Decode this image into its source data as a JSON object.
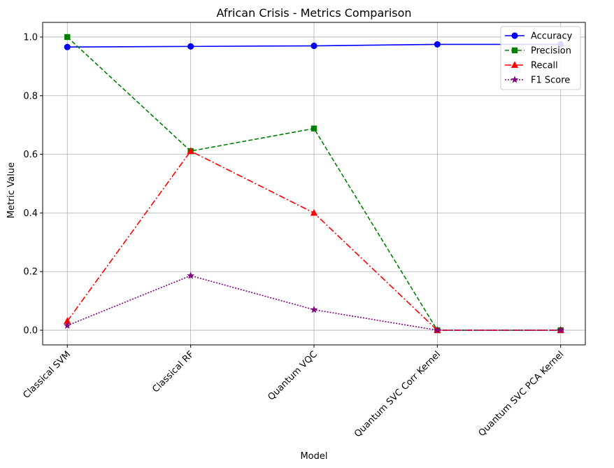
{
  "chart_data": {
    "type": "line",
    "title": "African Crisis - Metrics Comparison",
    "xlabel": "Model",
    "ylabel": "Metric Value",
    "categories": [
      "Classical SVM",
      "Classical RF",
      "Quantum VQC",
      "Quantum SVC Corr Kernel",
      "Quantum SVC PCA Kernel"
    ],
    "ylim": [
      -0.05,
      1.05
    ],
    "yticks": [
      0.0,
      0.2,
      0.4,
      0.6,
      0.8,
      1.0
    ],
    "ytick_labels": [
      "0.0",
      "0.2",
      "0.4",
      "0.6",
      "0.8",
      "1.0"
    ],
    "grid": true,
    "legend_position": "top-right",
    "series": [
      {
        "name": "Accuracy",
        "values": [
          0.966,
          0.968,
          0.97,
          0.975,
          0.975
        ],
        "color": "#0000ff",
        "marker": "circle",
        "linestyle": "solid"
      },
      {
        "name": "Precision",
        "values": [
          1.0,
          0.611,
          0.688,
          0.0,
          0.0
        ],
        "color": "#008000",
        "marker": "square",
        "linestyle": "dashed"
      },
      {
        "name": "Recall",
        "values": [
          0.031,
          0.611,
          0.4,
          0.0,
          0.0
        ],
        "color": "#ff0000",
        "marker": "triangle",
        "linestyle": "dashdot"
      },
      {
        "name": "F1 Score",
        "values": [
          0.016,
          0.186,
          0.07,
          0.0,
          0.0
        ],
        "color": "#800080",
        "marker": "star",
        "linestyle": "dotted"
      }
    ]
  }
}
